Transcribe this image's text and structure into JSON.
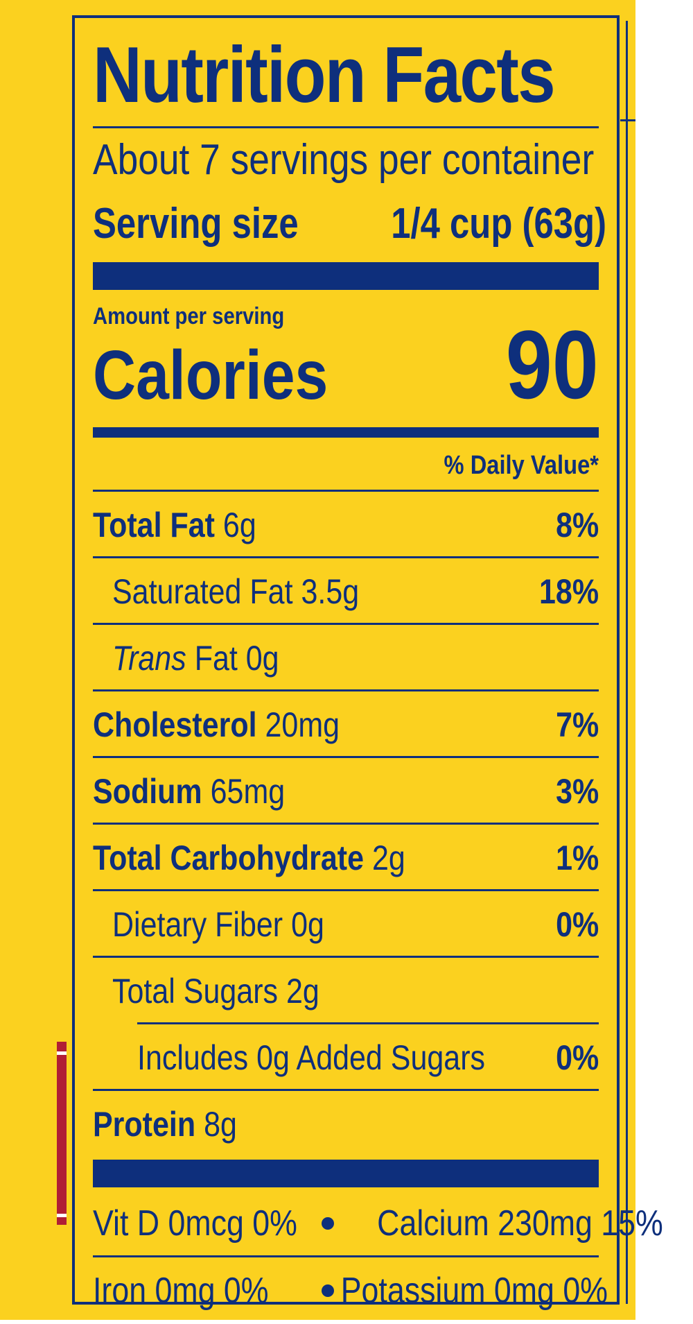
{
  "label": {
    "title": "Nutrition Facts",
    "servings_per_container": "About 7 servings per container",
    "serving_size_label": "Serving size",
    "serving_size_value": "1/4 cup (63g)",
    "amount_per_serving": "Amount per serving",
    "calories_label": "Calories",
    "calories_value": "90",
    "daily_value_header": "% Daily Value*",
    "nutrients": [
      {
        "name": "Total Fat",
        "amount": "6g",
        "dv": "8%"
      },
      {
        "name": "Saturated Fat",
        "amount": "3.5g",
        "dv": "18%"
      },
      {
        "name": "Trans",
        "rest": "Fat 0g",
        "dv": ""
      },
      {
        "name": "Cholesterol",
        "amount": "20mg",
        "dv": "7%"
      },
      {
        "name": "Sodium",
        "amount": "65mg",
        "dv": "3%"
      },
      {
        "name": "Total Carbohydrate",
        "amount": "2g",
        "dv": "1%"
      },
      {
        "name": "Dietary Fiber",
        "amount": "0g",
        "dv": "0%"
      },
      {
        "name": "Total Sugars",
        "amount": "2g",
        "dv": ""
      },
      {
        "name": "Includes 0g Added Sugars",
        "amount": "",
        "dv": "0%"
      },
      {
        "name": "Protein",
        "amount": "8g",
        "dv": ""
      }
    ],
    "vitamins": [
      {
        "left": "Vit D 0mcg 0%",
        "right": "Calcium 230mg 15%"
      },
      {
        "left": "Iron 0mg 0%",
        "right": "Potassium 0mg 0%"
      }
    ]
  },
  "colors": {
    "background": "#fbd11f",
    "ink": "#0e2f7c",
    "accent_red": "#b01e35"
  }
}
